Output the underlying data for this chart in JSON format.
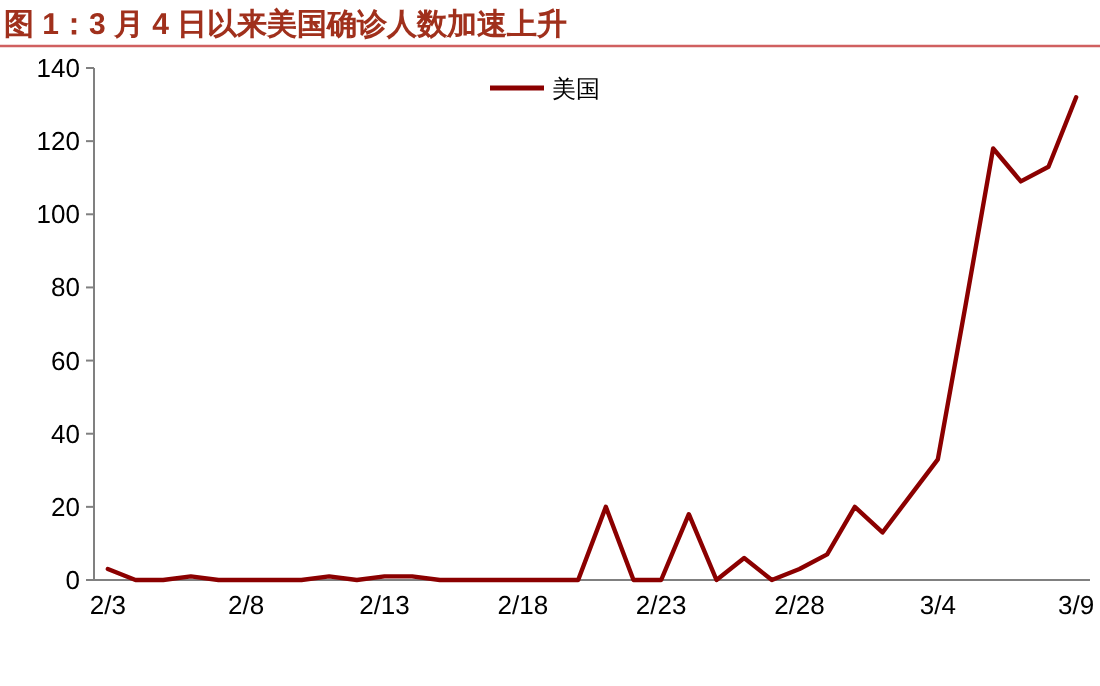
{
  "chart_data": {
    "type": "line",
    "title": "图 1：3 月 4 日以来美国确诊人数加速上升",
    "categories": [
      "2/3",
      null,
      null,
      null,
      null,
      "2/8",
      null,
      null,
      null,
      null,
      "2/13",
      null,
      null,
      null,
      null,
      "2/18",
      null,
      null,
      null,
      null,
      "2/23",
      null,
      null,
      null,
      null,
      "2/28",
      null,
      null,
      null,
      null,
      "3/4",
      null,
      null,
      null,
      null,
      "3/9"
    ],
    "series": [
      {
        "name": "美国",
        "color": "#8b0000",
        "values": [
          3,
          0,
          0,
          1,
          0,
          0,
          0,
          0,
          1,
          0,
          1,
          1,
          0,
          0,
          0,
          0,
          0,
          0,
          20,
          0,
          0,
          18,
          0,
          6,
          0,
          3,
          7,
          20,
          13,
          23,
          33,
          75,
          118,
          109,
          113,
          132
        ]
      }
    ],
    "ylim": [
      0,
      140
    ],
    "yticks": [
      0,
      20,
      40,
      60,
      80,
      100,
      120,
      140
    ],
    "grid": false,
    "legend": "top",
    "marker": "none",
    "line_style": "solid"
  }
}
